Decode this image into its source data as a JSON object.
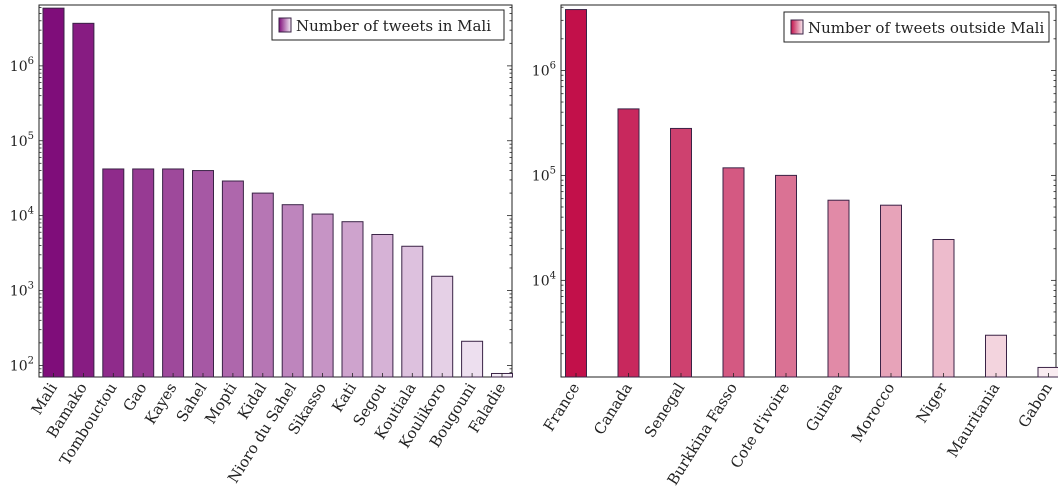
{
  "chart_data": [
    {
      "type": "bar",
      "yscale": "log",
      "ylim": [
        70,
        6500000
      ],
      "y_ticks": [
        100,
        1000,
        10000,
        100000,
        1000000
      ],
      "y_tick_labels": [
        {
          "base": "10",
          "exp": "2"
        },
        {
          "base": "10",
          "exp": "3"
        },
        {
          "base": "10",
          "exp": "4"
        },
        {
          "base": "10",
          "exp": "5"
        },
        {
          "base": "10",
          "exp": "6"
        }
      ],
      "legend_position": "top-right",
      "grid": false,
      "series": [
        {
          "name": "Number of tweets in Mali",
          "color_start": "#7f0d7a",
          "color_end": "#f5eef7"
        }
      ],
      "categories": [
        "Mali",
        "Bamako",
        "Tombouctou",
        "Gao",
        "Kayes",
        "Sahel",
        "Mopti",
        "Kidal",
        "Nioro du Sahel",
        "Sikasso",
        "Kati",
        "Segou",
        "Koutiala",
        "Koulikoro",
        "Bougouni",
        "Faladie"
      ],
      "values": [
        5900000,
        3700000,
        42000,
        42000,
        42000,
        40000,
        29000,
        20000,
        14000,
        10500,
        8300,
        5600,
        3900,
        1550,
        210,
        78
      ]
    },
    {
      "type": "bar",
      "yscale": "log",
      "ylim": [
        1200,
        4200000
      ],
      "y_ticks": [
        10000,
        100000,
        1000000
      ],
      "y_tick_labels": [
        {
          "base": "10",
          "exp": "4"
        },
        {
          "base": "10",
          "exp": "5"
        },
        {
          "base": "10",
          "exp": "6"
        }
      ],
      "legend_position": "top-right",
      "grid": false,
      "series": [
        {
          "name": "Number of tweets outside Mali",
          "color_start": "#c2104a",
          "color_end": "#f9ecf1"
        }
      ],
      "categories": [
        "France",
        "Canada",
        "Senegal",
        "Burkkina Fasso",
        "Cote d'ivoire",
        "Guinea",
        "Morocco",
        "Niger",
        "Mauritania",
        "Gabon"
      ],
      "values": [
        3800000,
        430000,
        280000,
        118000,
        100000,
        58000,
        52000,
        24500,
        3000,
        1480
      ]
    }
  ]
}
